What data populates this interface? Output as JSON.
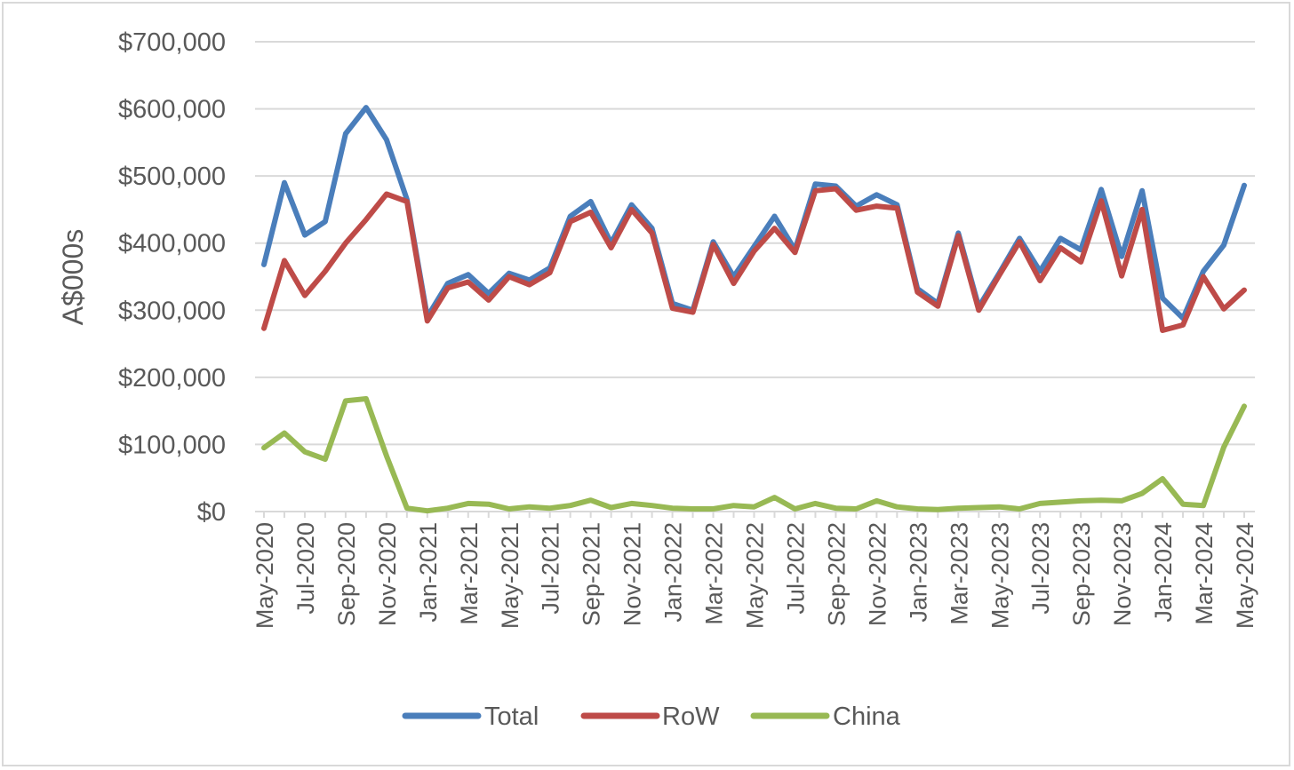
{
  "chart_data": {
    "type": "line",
    "title": "",
    "xlabel": "",
    "ylabel": "A$000s",
    "ylim": [
      0,
      700000
    ],
    "y_ticks": [
      "$0",
      "$100,000",
      "$200,000",
      "$300,000",
      "$400,000",
      "$500,000",
      "$600,000",
      "$700,000"
    ],
    "y_tick_values": [
      0,
      100000,
      200000,
      300000,
      400000,
      500000,
      600000,
      700000
    ],
    "grid": true,
    "legend_position": "bottom",
    "x": [
      "May-2020",
      "Jun-2020",
      "Jul-2020",
      "Aug-2020",
      "Sep-2020",
      "Oct-2020",
      "Nov-2020",
      "Dec-2020",
      "Jan-2021",
      "Feb-2021",
      "Mar-2021",
      "Apr-2021",
      "May-2021",
      "Jun-2021",
      "Jul-2021",
      "Aug-2021",
      "Sep-2021",
      "Oct-2021",
      "Nov-2021",
      "Dec-2021",
      "Jan-2022",
      "Feb-2022",
      "Mar-2022",
      "Apr-2022",
      "May-2022",
      "Jun-2022",
      "Jul-2022",
      "Aug-2022",
      "Sep-2022",
      "Oct-2022",
      "Nov-2022",
      "Dec-2022",
      "Jan-2023",
      "Feb-2023",
      "Mar-2023",
      "Apr-2023",
      "May-2023",
      "Jun-2023",
      "Jul-2023",
      "Aug-2023",
      "Sep-2023",
      "Oct-2023",
      "Nov-2023",
      "Dec-2023",
      "Jan-2024",
      "Feb-2024",
      "Mar-2024",
      "Apr-2024",
      "May-2024"
    ],
    "x_tick_labels": [
      "May-2020",
      "Jul-2020",
      "Sep-2020",
      "Nov-2020",
      "Jan-2021",
      "Mar-2021",
      "May-2021",
      "Jul-2021",
      "Sep-2021",
      "Nov-2021",
      "Jan-2022",
      "Mar-2022",
      "May-2022",
      "Jul-2022",
      "Sep-2022",
      "Nov-2022",
      "Jan-2023",
      "Mar-2023",
      "May-2023",
      "Jul-2023",
      "Sep-2023",
      "Nov-2023",
      "Jan-2024",
      "Mar-2024",
      "May-2024"
    ],
    "series": [
      {
        "name": "Total",
        "color": "#4a7ebb",
        "values": [
          368000,
          490000,
          412000,
          432000,
          563000,
          602000,
          554000,
          465000,
          290000,
          340000,
          353000,
          325000,
          355000,
          345000,
          363000,
          440000,
          462000,
          400000,
          457000,
          422000,
          310000,
          300000,
          402000,
          350000,
          395000,
          440000,
          390000,
          488000,
          485000,
          455000,
          472000,
          457000,
          332000,
          310000,
          415000,
          305000,
          355000,
          407000,
          358000,
          407000,
          390000,
          480000,
          380000,
          478000,
          318000,
          288000,
          358000,
          397000,
          486000
        ]
      },
      {
        "name": "RoW",
        "color": "#be4b48",
        "values": [
          273000,
          374000,
          322000,
          358000,
          400000,
          435000,
          473000,
          462000,
          284000,
          333000,
          342000,
          315000,
          350000,
          338000,
          356000,
          432000,
          446000,
          393000,
          450000,
          415000,
          303000,
          297000,
          398000,
          340000,
          388000,
          422000,
          386000,
          478000,
          481000,
          449000,
          455000,
          452000,
          327000,
          306000,
          411000,
          300000,
          352000,
          402000,
          344000,
          393000,
          372000,
          463000,
          351000,
          450000,
          270000,
          278000,
          350000,
          302000,
          330000
        ]
      },
      {
        "name": "China",
        "color": "#98b954",
        "values": [
          95000,
          117000,
          89000,
          78000,
          165000,
          168000,
          83000,
          5000,
          1000,
          5000,
          12000,
          11000,
          4000,
          7000,
          5000,
          9000,
          17000,
          6000,
          12000,
          9000,
          5000,
          4000,
          4000,
          9000,
          7000,
          21000,
          4000,
          12000,
          5000,
          4000,
          16000,
          7000,
          4000,
          3000,
          5000,
          6000,
          7000,
          4000,
          12000,
          14000,
          16000,
          17000,
          16000,
          27000,
          49000,
          11000,
          9000,
          96000,
          157000
        ]
      }
    ]
  }
}
